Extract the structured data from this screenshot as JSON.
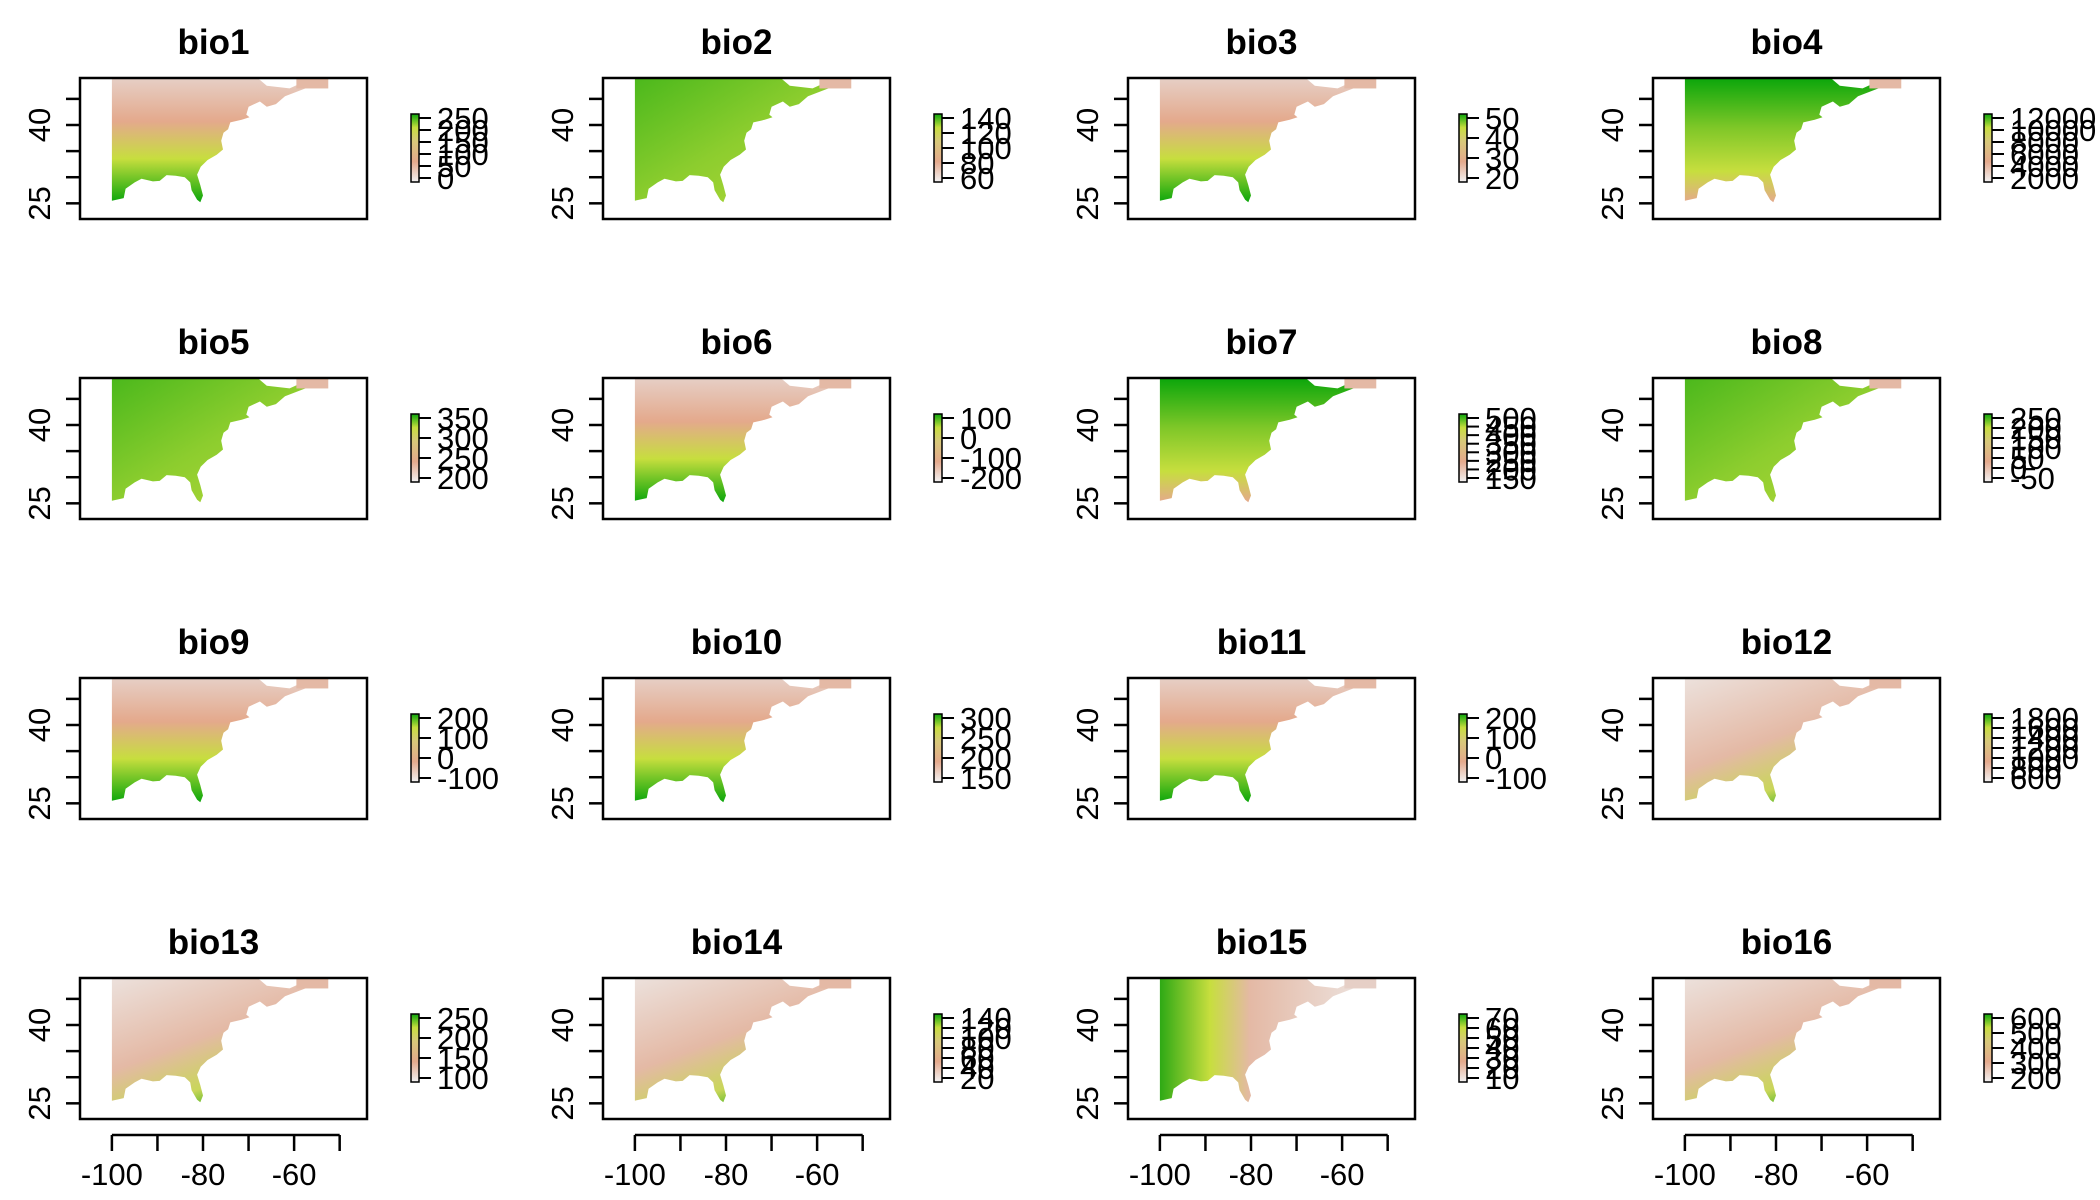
{
  "chart_data": {
    "type": "heatmap",
    "colors": {
      "low": "#e6cfc6",
      "mid1": "#e4a98c",
      "mid2": "#d8c97a",
      "mid3": "#c7de3e",
      "high": "#0ba60b",
      "frame": "#000000"
    },
    "x_ticks": [
      "-100",
      "-80",
      "-60"
    ],
    "y_ticks": [
      "25",
      "40"
    ],
    "panels": [
      {
        "title": "bio1",
        "legend_labels": [
          "250",
          "200",
          "150",
          "100",
          "50",
          "0"
        ]
      },
      {
        "title": "bio2",
        "legend_labels": [
          "140",
          "120",
          "100",
          "80",
          "60"
        ]
      },
      {
        "title": "bio3",
        "legend_labels": [
          "50",
          "40",
          "30",
          "20"
        ]
      },
      {
        "title": "bio4",
        "legend_labels": [
          "12000",
          "10000",
          "8000",
          "6000",
          "4000",
          "2000"
        ]
      },
      {
        "title": "bio5",
        "legend_labels": [
          "350",
          "300",
          "250",
          "200"
        ]
      },
      {
        "title": "bio6",
        "legend_labels": [
          "100",
          "0",
          "-100",
          "-200"
        ]
      },
      {
        "title": "bio7",
        "legend_labels": [
          "500",
          "450",
          "400",
          "350",
          "300",
          "250",
          "200",
          "150"
        ]
      },
      {
        "title": "bio8",
        "legend_labels": [
          "250",
          "200",
          "150",
          "100",
          "50",
          "0",
          "-50"
        ]
      },
      {
        "title": "bio9",
        "legend_labels": [
          "200",
          "100",
          "0",
          "-100"
        ]
      },
      {
        "title": "bio10",
        "legend_labels": [
          "300",
          "250",
          "200",
          "150"
        ]
      },
      {
        "title": "bio11",
        "legend_labels": [
          "200",
          "100",
          "0",
          "-100"
        ]
      },
      {
        "title": "bio12",
        "legend_labels": [
          "1800",
          "1600",
          "1400",
          "1200",
          "1000",
          "800",
          "600"
        ]
      },
      {
        "title": "bio13",
        "legend_labels": [
          "250",
          "200",
          "150",
          "100"
        ]
      },
      {
        "title": "bio14",
        "legend_labels": [
          "140",
          "120",
          "100",
          "80",
          "60",
          "40",
          "20"
        ]
      },
      {
        "title": "bio15",
        "legend_labels": [
          "70",
          "60",
          "50",
          "40",
          "30",
          "20",
          "10"
        ]
      },
      {
        "title": "bio16",
        "legend_labels": [
          "600",
          "500",
          "400",
          "300",
          "200"
        ]
      }
    ]
  }
}
